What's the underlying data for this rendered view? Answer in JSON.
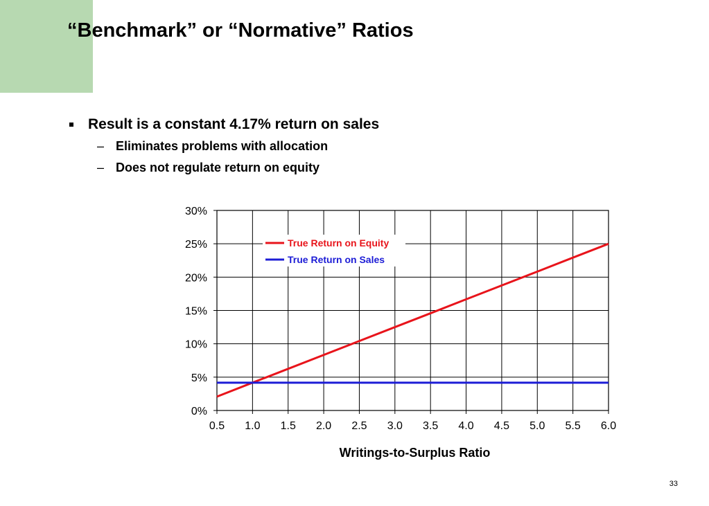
{
  "slide": {
    "title": "“Benchmark” or “Normative” Ratios",
    "accent_color": "#b7d9b1",
    "bullets": [
      {
        "text": "Result is a constant 4.17% return on sales",
        "subbullets": [
          "Eliminates problems with allocation",
          "Does not regulate return on equity"
        ]
      }
    ],
    "page_number": "33"
  },
  "chart_data": {
    "type": "line",
    "xlabel": "Writings-to-Surplus Ratio",
    "ylabel": "",
    "xlim": [
      0.5,
      6.0
    ],
    "ylim": [
      0,
      30
    ],
    "x_ticks": [
      "0.5",
      "1.0",
      "1.5",
      "2.0",
      "2.5",
      "3.0",
      "3.5",
      "4.0",
      "4.5",
      "5.0",
      "5.5",
      "6.0"
    ],
    "y_ticks": [
      "0%",
      "5%",
      "10%",
      "15%",
      "20%",
      "25%",
      "30%"
    ],
    "grid": true,
    "legend_position": "top-left",
    "series": [
      {
        "name": "True Return on Equity",
        "color": "#e8141b",
        "x": [
          0.5,
          1.0,
          1.5,
          2.0,
          2.5,
          3.0,
          3.5,
          4.0,
          4.5,
          5.0,
          5.5,
          6.0
        ],
        "values": [
          2.08,
          4.17,
          6.25,
          8.33,
          10.42,
          12.5,
          14.58,
          16.67,
          18.75,
          20.83,
          22.92,
          25.0
        ]
      },
      {
        "name": "True Return on Sales",
        "color": "#1c1cd6",
        "x": [
          0.5,
          6.0
        ],
        "values": [
          4.17,
          4.17
        ]
      }
    ]
  }
}
